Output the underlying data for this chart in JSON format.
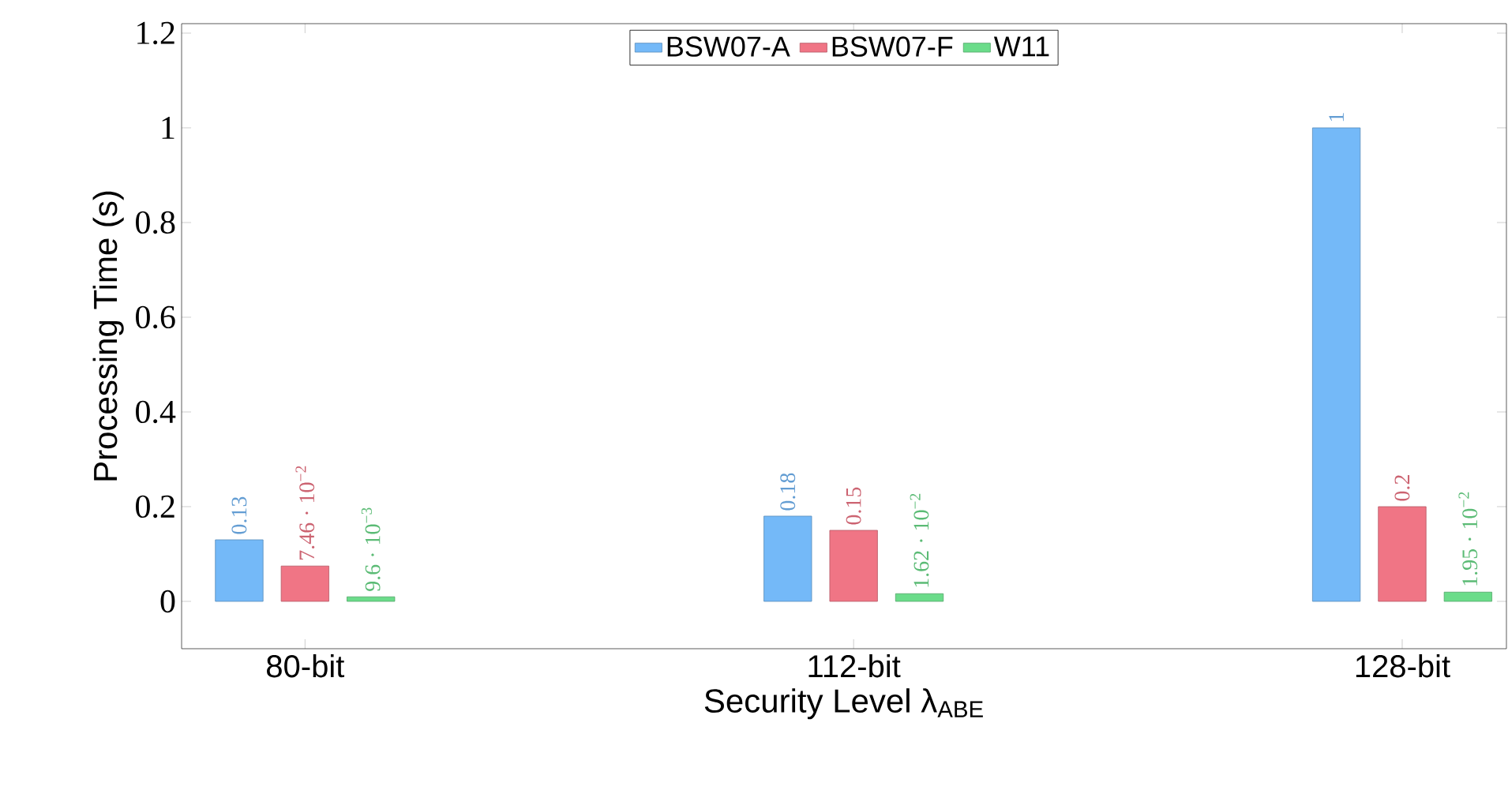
{
  "chart_data": {
    "type": "bar",
    "xlabel": "Security Level λ$_{ABE}$",
    "ylabel": "Processing Time (s)",
    "categories": [
      "80-bit",
      "112-bit",
      "128-bit"
    ],
    "series": [
      {
        "name": "BSW07-A",
        "color": "#74b9f8",
        "values": [
          0.13,
          0.18,
          1
        ],
        "value_labels": [
          "0.13",
          "0.18",
          "1"
        ]
      },
      {
        "name": "BSW07-F",
        "color": "#f07585",
        "values": [
          0.0746,
          0.15,
          0.2
        ],
        "value_labels": [
          "7.46 · 10$^{−2}$",
          "0.15",
          "0.2"
        ]
      },
      {
        "name": "W11",
        "color": "#6bdc8a",
        "values": [
          0.0096,
          0.0162,
          0.0195
        ],
        "value_labels": [
          "9.6 · 10$^{−3}$",
          "1.62 · 10$^{−2}$",
          "1.95 · 10$^{−2}$"
        ]
      }
    ],
    "ylim": [
      -0.1,
      1.22
    ],
    "yticks": [
      0,
      0.2,
      0.4,
      0.6,
      0.8,
      1,
      1.2
    ],
    "legend": "top",
    "grid": false
  }
}
